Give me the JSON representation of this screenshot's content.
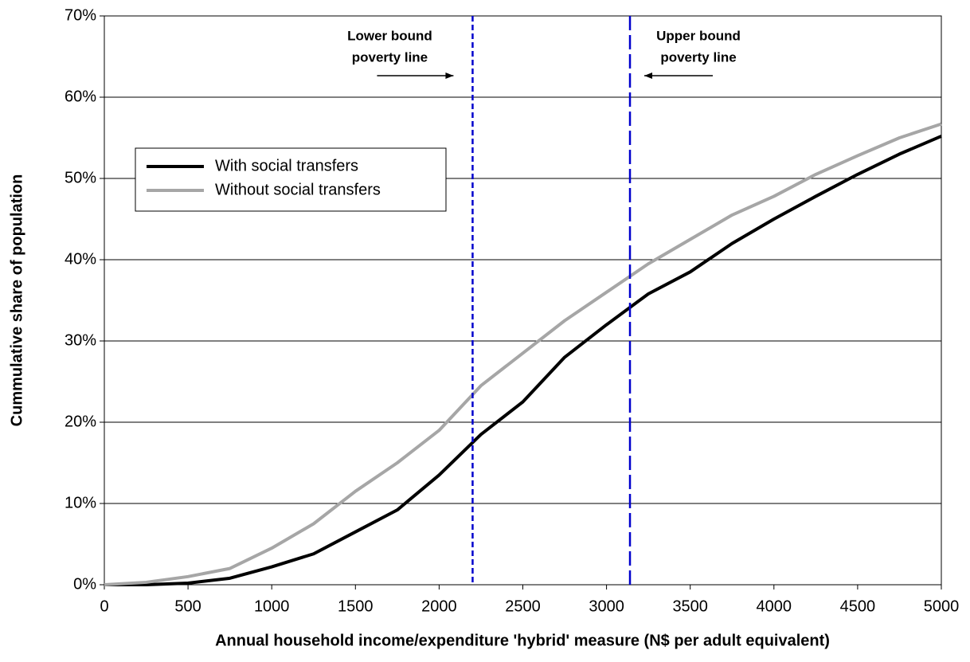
{
  "chart_data": {
    "type": "line",
    "x_label": "Annual household income/expenditure 'hybrid' measure (N$ per adult equivalent)",
    "y_label": "Cummulative share of population",
    "x": [
      0,
      250,
      500,
      750,
      1000,
      1250,
      1500,
      1750,
      2000,
      2250,
      2500,
      2750,
      3000,
      3250,
      3500,
      3750,
      4000,
      4250,
      4500,
      4750,
      5000
    ],
    "series": [
      {
        "name": "With social transfers",
        "color": "#000000",
        "values": [
          0,
          0,
          0.2,
          0.8,
          2.2,
          3.8,
          6.5,
          9.2,
          13.5,
          18.5,
          22.5,
          28,
          32,
          35.8,
          38.5,
          42,
          45,
          47.8,
          50.5,
          53,
          55.2
        ]
      },
      {
        "name": "Without social transfers",
        "color": "#a6a6a6",
        "values": [
          0,
          0.3,
          1,
          2,
          4.5,
          7.5,
          11.5,
          15,
          19,
          24.5,
          28.5,
          32.5,
          36,
          39.5,
          42.5,
          45.5,
          47.8,
          50.5,
          52.8,
          55,
          56.7
        ]
      }
    ],
    "xlim": [
      0,
      5000
    ],
    "xticks": [
      0,
      500,
      1000,
      1500,
      2000,
      2500,
      3000,
      3500,
      4000,
      4500,
      5000
    ],
    "ylim": [
      0,
      70
    ],
    "yticks": [
      {
        "value": 0,
        "label": "0%"
      },
      {
        "value": 10,
        "label": "10%"
      },
      {
        "value": 20,
        "label": "20%"
      },
      {
        "value": 30,
        "label": "30%"
      },
      {
        "value": 40,
        "label": "40%"
      },
      {
        "value": 50,
        "label": "50%"
      },
      {
        "value": 60,
        "label": "60%"
      },
      {
        "value": 70,
        "label": "70%"
      }
    ],
    "grid": true,
    "legend_position": "center-left",
    "vlines": [
      {
        "x": 2200,
        "color": "#0000cc",
        "style": "dotted",
        "side": "left",
        "label": [
          "Lower bound",
          "poverty line"
        ]
      },
      {
        "x": 3140,
        "color": "#0000cc",
        "style": "dashed",
        "side": "right",
        "label": [
          "Upper bound",
          "poverty line"
        ]
      }
    ]
  }
}
